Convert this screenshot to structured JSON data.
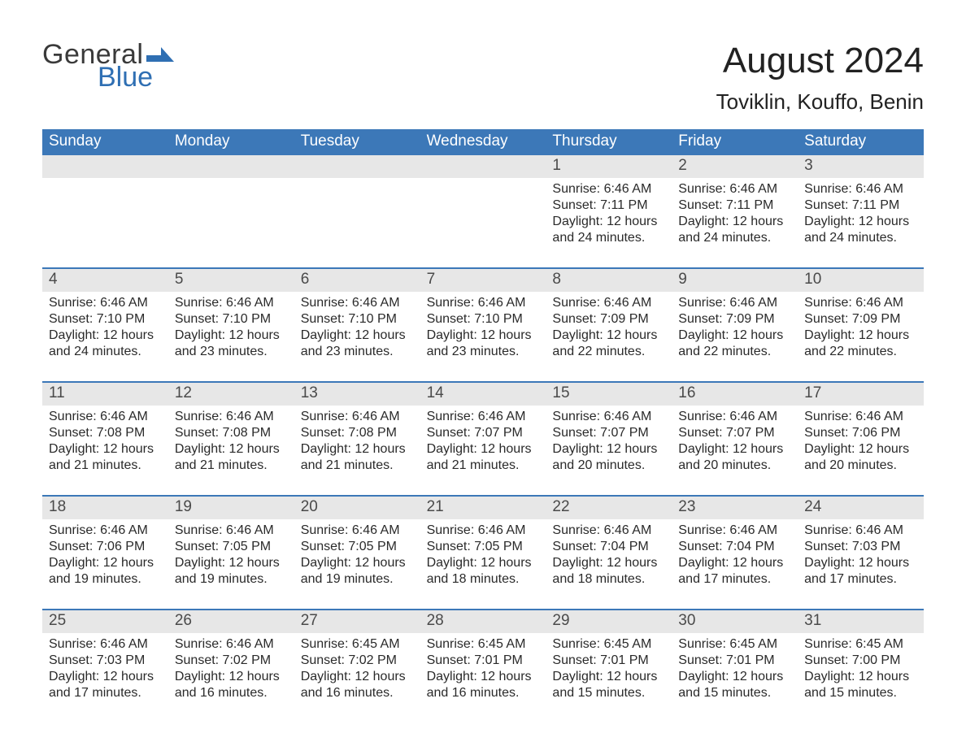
{
  "brand": {
    "word1": "General",
    "word2": "Blue",
    "accent_color": "#2f6fb3",
    "text_color": "#3a3a3a"
  },
  "header": {
    "title": "August 2024",
    "subtitle": "Toviklin, Kouffo, Benin"
  },
  "colors": {
    "page_background": "#ffffff",
    "header_bar": "#3c78b8",
    "header_bar_text": "#ffffff",
    "day_head_bg": "#e7e7e7",
    "body_text": "#2a2a2a",
    "week_divider": "#3c78b8"
  },
  "typography": {
    "title_fontsize": 44,
    "subtitle_fontsize": 26,
    "dow_fontsize": 19,
    "daynum_fontsize": 19,
    "body_fontsize": 16,
    "font_family": "Arial"
  },
  "calendar": {
    "type": "table",
    "days_of_week": [
      "Sunday",
      "Monday",
      "Tuesday",
      "Wednesday",
      "Thursday",
      "Friday",
      "Saturday"
    ],
    "labels": {
      "sunrise_prefix": "Sunrise: ",
      "sunset_prefix": "Sunset: ",
      "daylight_prefix": "Daylight: "
    },
    "weeks": [
      [
        null,
        null,
        null,
        null,
        {
          "n": "1",
          "sunrise": "6:46 AM",
          "sunset": "7:11 PM",
          "daylight": "12 hours and 24 minutes."
        },
        {
          "n": "2",
          "sunrise": "6:46 AM",
          "sunset": "7:11 PM",
          "daylight": "12 hours and 24 minutes."
        },
        {
          "n": "3",
          "sunrise": "6:46 AM",
          "sunset": "7:11 PM",
          "daylight": "12 hours and 24 minutes."
        }
      ],
      [
        {
          "n": "4",
          "sunrise": "6:46 AM",
          "sunset": "7:10 PM",
          "daylight": "12 hours and 24 minutes."
        },
        {
          "n": "5",
          "sunrise": "6:46 AM",
          "sunset": "7:10 PM",
          "daylight": "12 hours and 23 minutes."
        },
        {
          "n": "6",
          "sunrise": "6:46 AM",
          "sunset": "7:10 PM",
          "daylight": "12 hours and 23 minutes."
        },
        {
          "n": "7",
          "sunrise": "6:46 AM",
          "sunset": "7:10 PM",
          "daylight": "12 hours and 23 minutes."
        },
        {
          "n": "8",
          "sunrise": "6:46 AM",
          "sunset": "7:09 PM",
          "daylight": "12 hours and 22 minutes."
        },
        {
          "n": "9",
          "sunrise": "6:46 AM",
          "sunset": "7:09 PM",
          "daylight": "12 hours and 22 minutes."
        },
        {
          "n": "10",
          "sunrise": "6:46 AM",
          "sunset": "7:09 PM",
          "daylight": "12 hours and 22 minutes."
        }
      ],
      [
        {
          "n": "11",
          "sunrise": "6:46 AM",
          "sunset": "7:08 PM",
          "daylight": "12 hours and 21 minutes."
        },
        {
          "n": "12",
          "sunrise": "6:46 AM",
          "sunset": "7:08 PM",
          "daylight": "12 hours and 21 minutes."
        },
        {
          "n": "13",
          "sunrise": "6:46 AM",
          "sunset": "7:08 PM",
          "daylight": "12 hours and 21 minutes."
        },
        {
          "n": "14",
          "sunrise": "6:46 AM",
          "sunset": "7:07 PM",
          "daylight": "12 hours and 21 minutes."
        },
        {
          "n": "15",
          "sunrise": "6:46 AM",
          "sunset": "7:07 PM",
          "daylight": "12 hours and 20 minutes."
        },
        {
          "n": "16",
          "sunrise": "6:46 AM",
          "sunset": "7:07 PM",
          "daylight": "12 hours and 20 minutes."
        },
        {
          "n": "17",
          "sunrise": "6:46 AM",
          "sunset": "7:06 PM",
          "daylight": "12 hours and 20 minutes."
        }
      ],
      [
        {
          "n": "18",
          "sunrise": "6:46 AM",
          "sunset": "7:06 PM",
          "daylight": "12 hours and 19 minutes."
        },
        {
          "n": "19",
          "sunrise": "6:46 AM",
          "sunset": "7:05 PM",
          "daylight": "12 hours and 19 minutes."
        },
        {
          "n": "20",
          "sunrise": "6:46 AM",
          "sunset": "7:05 PM",
          "daylight": "12 hours and 19 minutes."
        },
        {
          "n": "21",
          "sunrise": "6:46 AM",
          "sunset": "7:05 PM",
          "daylight": "12 hours and 18 minutes."
        },
        {
          "n": "22",
          "sunrise": "6:46 AM",
          "sunset": "7:04 PM",
          "daylight": "12 hours and 18 minutes."
        },
        {
          "n": "23",
          "sunrise": "6:46 AM",
          "sunset": "7:04 PM",
          "daylight": "12 hours and 17 minutes."
        },
        {
          "n": "24",
          "sunrise": "6:46 AM",
          "sunset": "7:03 PM",
          "daylight": "12 hours and 17 minutes."
        }
      ],
      [
        {
          "n": "25",
          "sunrise": "6:46 AM",
          "sunset": "7:03 PM",
          "daylight": "12 hours and 17 minutes."
        },
        {
          "n": "26",
          "sunrise": "6:46 AM",
          "sunset": "7:02 PM",
          "daylight": "12 hours and 16 minutes."
        },
        {
          "n": "27",
          "sunrise": "6:45 AM",
          "sunset": "7:02 PM",
          "daylight": "12 hours and 16 minutes."
        },
        {
          "n": "28",
          "sunrise": "6:45 AM",
          "sunset": "7:01 PM",
          "daylight": "12 hours and 16 minutes."
        },
        {
          "n": "29",
          "sunrise": "6:45 AM",
          "sunset": "7:01 PM",
          "daylight": "12 hours and 15 minutes."
        },
        {
          "n": "30",
          "sunrise": "6:45 AM",
          "sunset": "7:01 PM",
          "daylight": "12 hours and 15 minutes."
        },
        {
          "n": "31",
          "sunrise": "6:45 AM",
          "sunset": "7:00 PM",
          "daylight": "12 hours and 15 minutes."
        }
      ]
    ]
  }
}
